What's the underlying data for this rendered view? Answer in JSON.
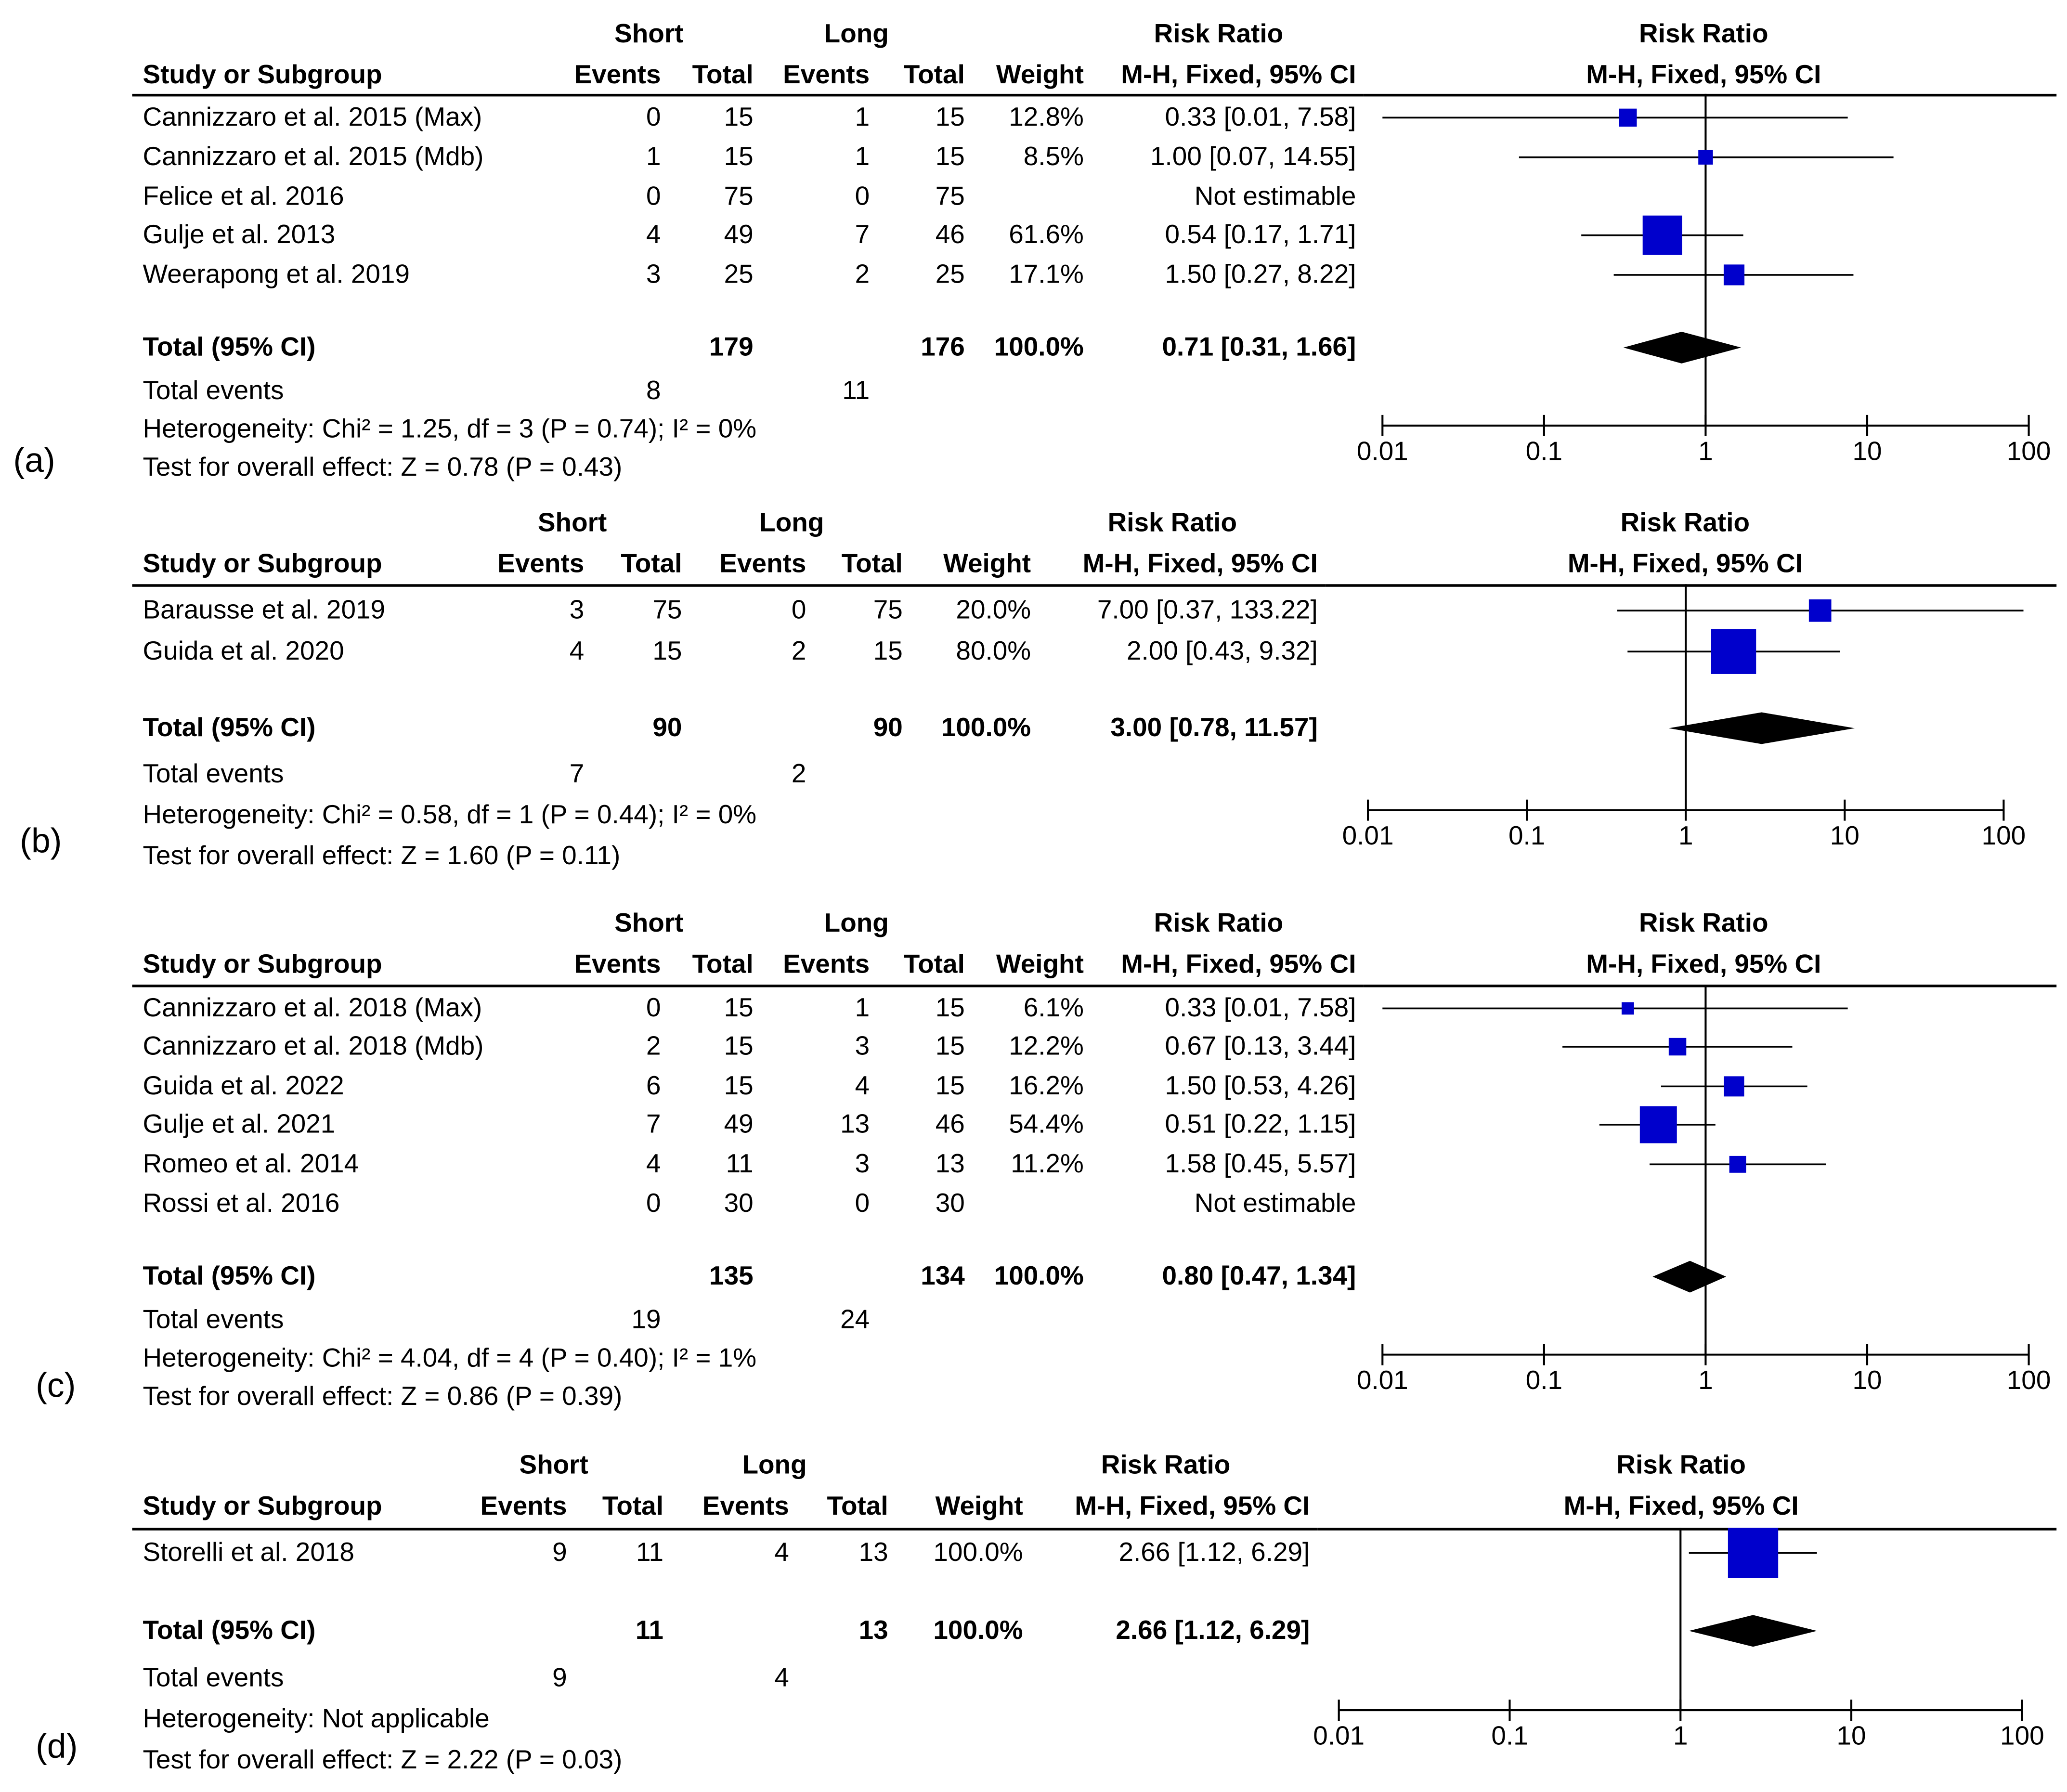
{
  "chart_data": [
    {
      "type": "forest",
      "panel_label": "(a)",
      "header": {
        "group1": "Short",
        "group2": "Long",
        "risk_ratio": "Risk Ratio",
        "method": "M-H, Fixed, 95% CI",
        "study_col": "Study or Subgroup",
        "events": "Events",
        "total": "Total",
        "weight": "Weight"
      },
      "studies": [
        {
          "name": "Cannizzaro et al. 2015 (Max)",
          "e1": "0",
          "t1": "15",
          "e2": "1",
          "t2": "15",
          "weight": "12.8%",
          "ci_text": "0.33 [0.01, 7.58]",
          "rr": 0.33,
          "lo": 0.01,
          "hi": 7.58,
          "w": 12.8
        },
        {
          "name": "Cannizzaro et al. 2015 (Mdb)",
          "e1": "1",
          "t1": "15",
          "e2": "1",
          "t2": "15",
          "weight": "8.5%",
          "ci_text": "1.00 [0.07, 14.55]",
          "rr": 1.0,
          "lo": 0.07,
          "hi": 14.55,
          "w": 8.5
        },
        {
          "name": "Felice et al. 2016",
          "e1": "0",
          "t1": "75",
          "e2": "0",
          "t2": "75",
          "weight": "",
          "ci_text": "Not estimable",
          "rr": null,
          "lo": null,
          "hi": null,
          "w": 0
        },
        {
          "name": "Gulje et al. 2013",
          "e1": "4",
          "t1": "49",
          "e2": "7",
          "t2": "46",
          "weight": "61.6%",
          "ci_text": "0.54 [0.17, 1.71]",
          "rr": 0.54,
          "lo": 0.17,
          "hi": 1.71,
          "w": 61.6
        },
        {
          "name": "Weerapong et al. 2019",
          "e1": "3",
          "t1": "25",
          "e2": "2",
          "t2": "25",
          "weight": "17.1%",
          "ci_text": "1.50 [0.27, 8.22]",
          "rr": 1.5,
          "lo": 0.27,
          "hi": 8.22,
          "w": 17.1
        }
      ],
      "total": {
        "label": "Total (95% CI)",
        "t1": "179",
        "t2": "176",
        "weight": "100.0%",
        "ci_text": "0.71 [0.31, 1.66]",
        "rr": 0.71,
        "lo": 0.31,
        "hi": 1.66
      },
      "events_row": {
        "label": "Total events",
        "e1": "8",
        "e2": "11"
      },
      "heterogeneity": "Heterogeneity: Chi² = 1.25, df = 3 (P = 0.74); I² = 0%",
      "overall": "Test for overall effect: Z = 0.78 (P = 0.43)",
      "x_ticks": [
        "0.01",
        "0.1",
        "1",
        "10",
        "100"
      ],
      "xlim": [
        0.01,
        100
      ]
    },
    {
      "type": "forest",
      "panel_label": "(b)",
      "header": {
        "group1": "Short",
        "group2": "Long",
        "risk_ratio": "Risk Ratio",
        "method": "M-H, Fixed, 95% CI",
        "study_col": "Study or Subgroup",
        "events": "Events",
        "total": "Total",
        "weight": "Weight"
      },
      "studies": [
        {
          "name": "Barausse et al. 2019",
          "e1": "3",
          "t1": "75",
          "e2": "0",
          "t2": "75",
          "weight": "20.0%",
          "ci_text": "7.00 [0.37, 133.22]",
          "rr": 7.0,
          "lo": 0.37,
          "hi": 133.22,
          "w": 20.0
        },
        {
          "name": "Guida et al. 2020",
          "e1": "4",
          "t1": "15",
          "e2": "2",
          "t2": "15",
          "weight": "80.0%",
          "ci_text": "2.00 [0.43, 9.32]",
          "rr": 2.0,
          "lo": 0.43,
          "hi": 9.32,
          "w": 80.0
        }
      ],
      "total": {
        "label": "Total (95% CI)",
        "t1": "90",
        "t2": "90",
        "weight": "100.0%",
        "ci_text": "3.00 [0.78, 11.57]",
        "rr": 3.0,
        "lo": 0.78,
        "hi": 11.57
      },
      "events_row": {
        "label": "Total events",
        "e1": "7",
        "e2": "2"
      },
      "heterogeneity": "Heterogeneity: Chi² = 0.58, df = 1 (P = 0.44); I² = 0%",
      "overall": "Test for overall effect: Z = 1.60 (P = 0.11)",
      "x_ticks": [
        "0.01",
        "0.1",
        "1",
        "10",
        "100"
      ],
      "xlim": [
        0.01,
        100
      ]
    },
    {
      "type": "forest",
      "panel_label": "(c)",
      "header": {
        "group1": "Short",
        "group2": "Long",
        "risk_ratio": "Risk Ratio",
        "method": "M-H, Fixed, 95% CI",
        "study_col": "Study or Subgroup",
        "events": "Events",
        "total": "Total",
        "weight": "Weight"
      },
      "studies": [
        {
          "name": "Cannizzaro et al. 2018 (Max)",
          "e1": "0",
          "t1": "15",
          "e2": "1",
          "t2": "15",
          "weight": "6.1%",
          "ci_text": "0.33 [0.01, 7.58]",
          "rr": 0.33,
          "lo": 0.01,
          "hi": 7.58,
          "w": 6.1
        },
        {
          "name": "Cannizzaro et al. 2018 (Mdb)",
          "e1": "2",
          "t1": "15",
          "e2": "3",
          "t2": "15",
          "weight": "12.2%",
          "ci_text": "0.67 [0.13, 3.44]",
          "rr": 0.67,
          "lo": 0.13,
          "hi": 3.44,
          "w": 12.2
        },
        {
          "name": "Guida et al. 2022",
          "e1": "6",
          "t1": "15",
          "e2": "4",
          "t2": "15",
          "weight": "16.2%",
          "ci_text": "1.50 [0.53, 4.26]",
          "rr": 1.5,
          "lo": 0.53,
          "hi": 4.26,
          "w": 16.2
        },
        {
          "name": "Gulje et al. 2021",
          "e1": "7",
          "t1": "49",
          "e2": "13",
          "t2": "46",
          "weight": "54.4%",
          "ci_text": "0.51 [0.22, 1.15]",
          "rr": 0.51,
          "lo": 0.22,
          "hi": 1.15,
          "w": 54.4
        },
        {
          "name": "Romeo et al. 2014",
          "e1": "4",
          "t1": "11",
          "e2": "3",
          "t2": "13",
          "weight": "11.2%",
          "ci_text": "1.58 [0.45, 5.57]",
          "rr": 1.58,
          "lo": 0.45,
          "hi": 5.57,
          "w": 11.2
        },
        {
          "name": "Rossi et al. 2016",
          "e1": "0",
          "t1": "30",
          "e2": "0",
          "t2": "30",
          "weight": "",
          "ci_text": "Not estimable",
          "rr": null,
          "lo": null,
          "hi": null,
          "w": 0
        }
      ],
      "total": {
        "label": "Total (95% CI)",
        "t1": "135",
        "t2": "134",
        "weight": "100.0%",
        "ci_text": "0.80 [0.47, 1.34]",
        "rr": 0.8,
        "lo": 0.47,
        "hi": 1.34
      },
      "events_row": {
        "label": "Total events",
        "e1": "19",
        "e2": "24"
      },
      "heterogeneity": "Heterogeneity: Chi² = 4.04, df = 4 (P = 0.40); I² = 1%",
      "overall": "Test for overall effect: Z = 0.86 (P = 0.39)",
      "x_ticks": [
        "0.01",
        "0.1",
        "1",
        "10",
        "100"
      ],
      "xlim": [
        0.01,
        100
      ]
    },
    {
      "type": "forest",
      "panel_label": "(d)",
      "header": {
        "group1": "Short",
        "group2": "Long",
        "risk_ratio": "Risk Ratio",
        "method": "M-H, Fixed, 95% CI",
        "study_col": "Study or Subgroup",
        "events": "Events",
        "total": "Total",
        "weight": "Weight"
      },
      "studies": [
        {
          "name": "Storelli et al. 2018",
          "e1": "9",
          "t1": "11",
          "e2": "4",
          "t2": "13",
          "weight": "100.0%",
          "ci_text": "2.66 [1.12, 6.29]",
          "rr": 2.66,
          "lo": 1.12,
          "hi": 6.29,
          "w": 100.0
        }
      ],
      "total": {
        "label": "Total (95% CI)",
        "t1": "11",
        "t2": "13",
        "weight": "100.0%",
        "ci_text": "2.66 [1.12, 6.29]",
        "rr": 2.66,
        "lo": 1.12,
        "hi": 6.29
      },
      "events_row": {
        "label": "Total events",
        "e1": "9",
        "e2": "4"
      },
      "heterogeneity": "Heterogeneity: Not applicable",
      "overall": "Test for overall effect: Z = 2.22 (P = 0.03)",
      "x_ticks": [
        "0.01",
        "0.1",
        "1",
        "10",
        "100"
      ],
      "xlim": [
        0.01,
        100
      ]
    }
  ],
  "colors": {
    "square": "#0000cc",
    "diamond": "#000000",
    "line": "#000000"
  }
}
